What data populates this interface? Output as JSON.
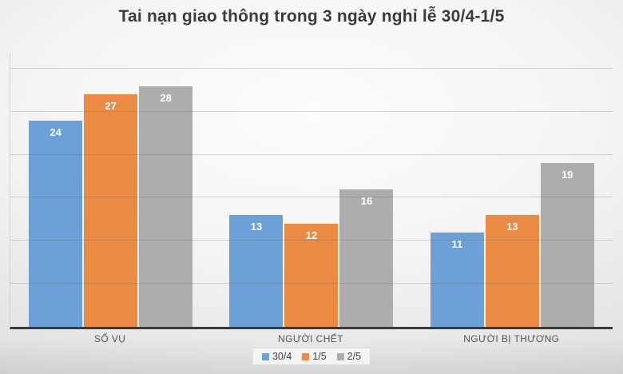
{
  "chart_data": {
    "type": "bar",
    "title": "Tai nạn giao thông trong 3 ngày nghỉ lễ 30/4-1/5",
    "categories": [
      "SỐ VỤ",
      "NGƯỜI CHẾT",
      "NGƯỜI BỊ THƯƠNG"
    ],
    "series": [
      {
        "name": "30/4",
        "color": "#6BA1D6",
        "values": [
          24,
          13,
          11
        ]
      },
      {
        "name": "1/5",
        "color": "#EA8A43",
        "values": [
          27,
          12,
          13
        ]
      },
      {
        "name": "2/5",
        "color": "#ADADAD",
        "values": [
          28,
          16,
          19
        ]
      }
    ],
    "ylim": [
      0,
      30
    ],
    "gridline_step": 5,
    "grid": true,
    "y_tick_labels_visible": false,
    "legend_position": "bottom",
    "data_labels": "inside-end",
    "data_label_color": "#ffffff"
  }
}
